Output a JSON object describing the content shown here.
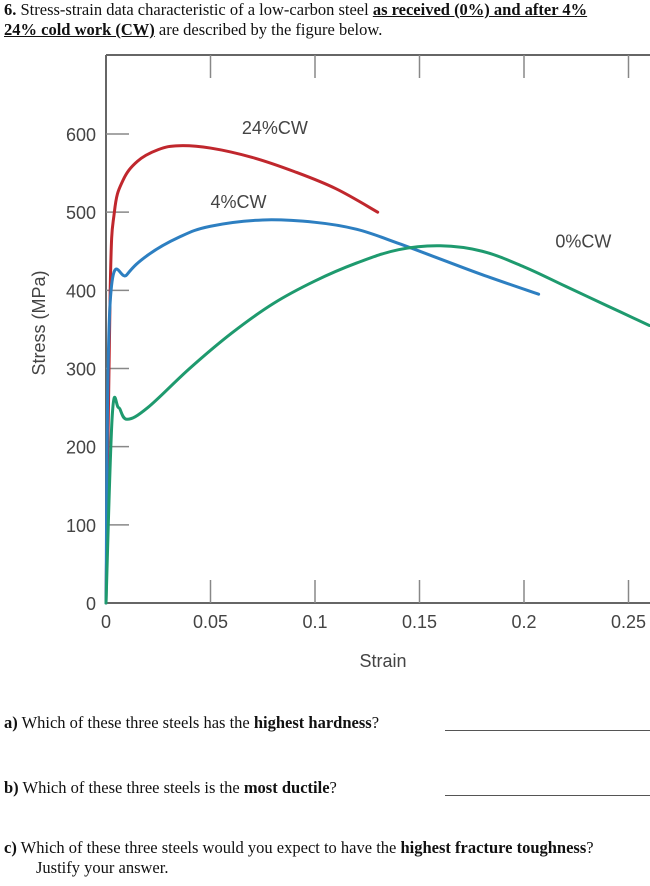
{
  "header": {
    "number": "6.",
    "text_plain": " Stress-strain data characteristic of a low-carbon steel ",
    "text_underlined_1": "as received (0%) and after 4%",
    "text_underlined_2": "24% cold work (CW)",
    "text_plain_2": " are described by the figure below."
  },
  "chart_data": {
    "type": "line",
    "title": "",
    "xlabel": "Strain",
    "ylabel": "Stress (MPa)",
    "xlim": [
      0,
      0.26
    ],
    "ylim": [
      0,
      700
    ],
    "x_ticks": [
      "0",
      "0.05",
      "0.1",
      "0.15",
      "0.2",
      "0.25"
    ],
    "y_ticks": [
      "0",
      "100",
      "200",
      "300",
      "400",
      "500",
      "600"
    ],
    "grid": false,
    "legend_position": "inline labels",
    "series": [
      {
        "name": "24%CW",
        "color": "#c0272d",
        "x": [
          0,
          0.002,
          0.004,
          0.008,
          0.015,
          0.025,
          0.035,
          0.05,
          0.07,
          0.09,
          0.11,
          0.13
        ],
        "y": [
          0,
          400,
          500,
          540,
          565,
          580,
          585,
          582,
          570,
          552,
          530,
          500
        ]
      },
      {
        "name": "4%CW",
        "color": "#2d7fc1",
        "x": [
          0,
          0.002,
          0.01,
          0.02,
          0.035,
          0.05,
          0.075,
          0.1,
          0.12,
          0.14,
          0.16,
          0.18,
          0.207
        ],
        "y": [
          0,
          385,
          420,
          445,
          468,
          482,
          490,
          487,
          478,
          460,
          440,
          420,
          395
        ]
      },
      {
        "name": "0%CW",
        "color": "#1e9a6e",
        "x": [
          0,
          0.003,
          0.006,
          0.01,
          0.02,
          0.04,
          0.06,
          0.08,
          0.1,
          0.12,
          0.14,
          0.16,
          0.18,
          0.2,
          0.22,
          0.24,
          0.26
        ],
        "y": [
          0,
          240,
          250,
          235,
          250,
          300,
          345,
          383,
          412,
          435,
          452,
          457,
          450,
          430,
          405,
          380,
          355
        ]
      }
    ],
    "annotations": [
      {
        "text": "24%CW",
        "x": 0.065,
        "y": 600
      },
      {
        "text": "4%CW",
        "x": 0.05,
        "y": 505
      },
      {
        "text": "0%CW",
        "x": 0.215,
        "y": 455
      }
    ]
  },
  "questions": [
    {
      "label": "a)",
      "pre": " Which of these three steels has the ",
      "bold": "highest hardness",
      "post": "?"
    },
    {
      "label": "b)",
      "pre": " Which of these three steels is the ",
      "bold": "most ductile",
      "post": "?"
    },
    {
      "label": "c)",
      "pre": " Which of these three steels would you expect to have the ",
      "bold": "highest fracture toughness",
      "post": "?",
      "line2": "Justify your answer."
    }
  ]
}
